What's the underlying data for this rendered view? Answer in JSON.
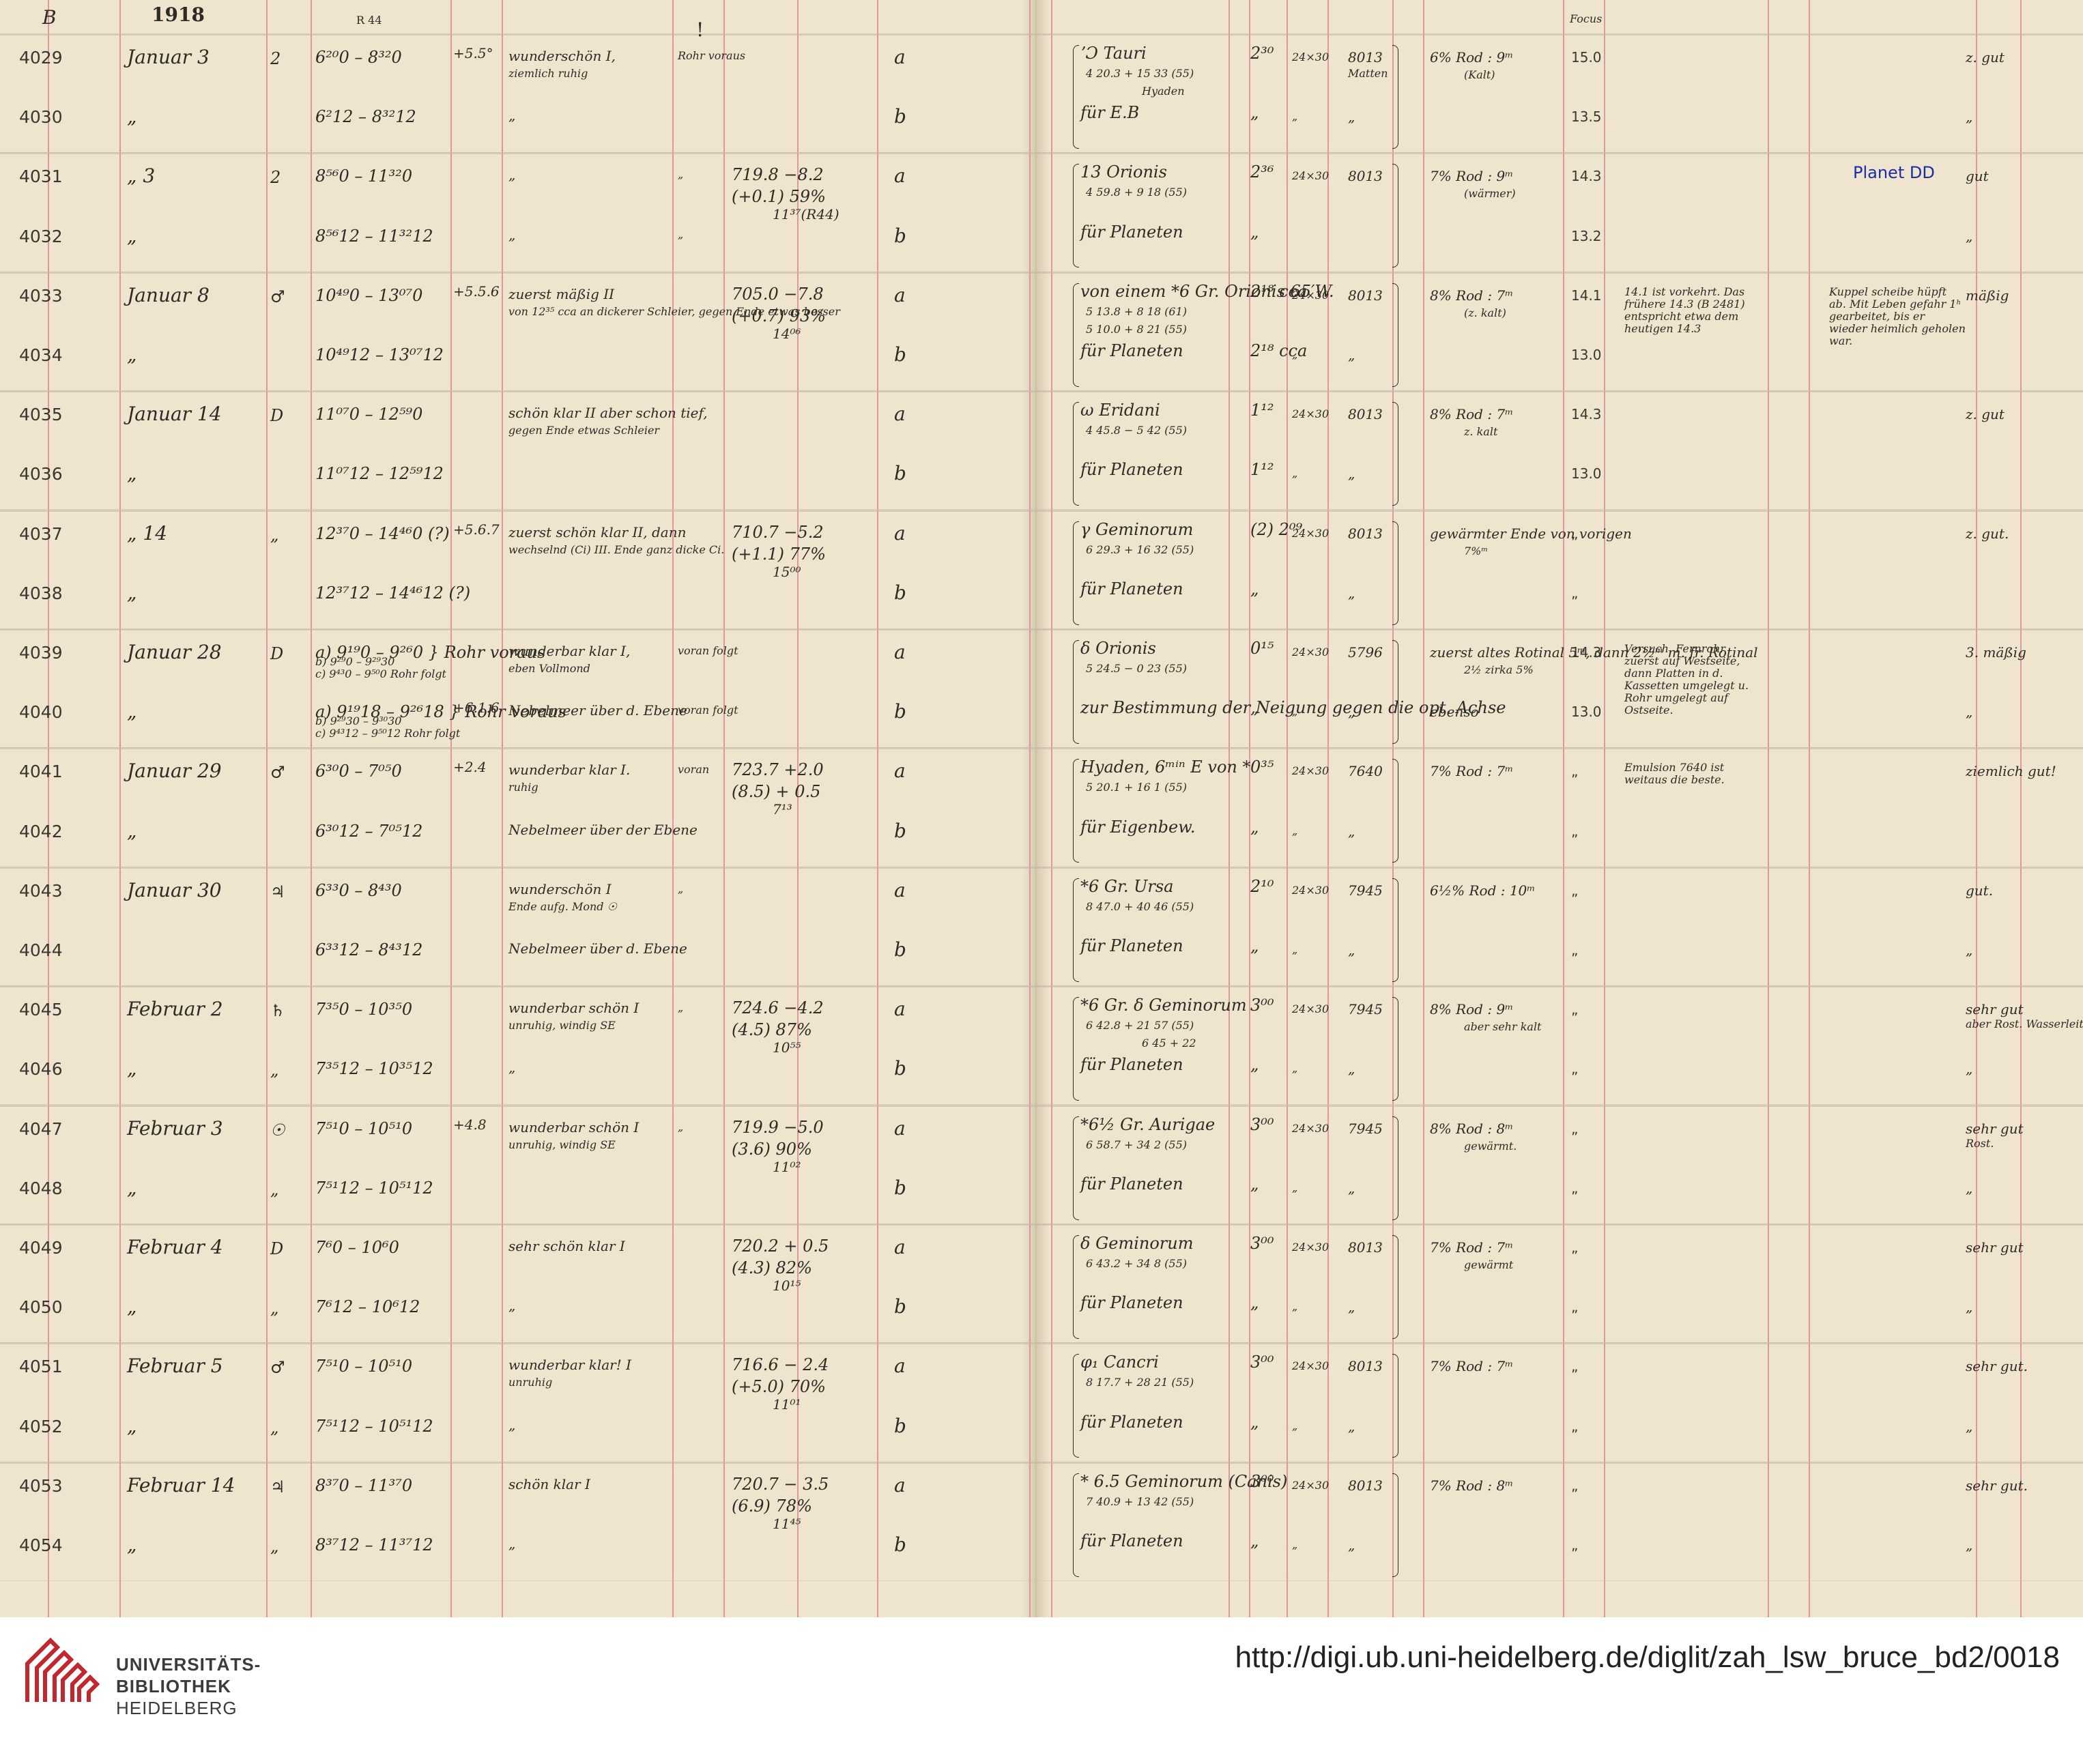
{
  "header": {
    "page_letter": "B",
    "year": "1918",
    "ref": "R 44",
    "exclaim": "!",
    "focus_label": "Focus"
  },
  "rows": [
    {
      "no": "4029",
      "date": "Januar 3",
      "wd": "2",
      "time": "6²⁰0 – 8³²0",
      "temp": "+5.5°",
      "weather": "wunderschön I,",
      "weather2": "ziemlich ruhig",
      "telescope": "Rohr voraus",
      "barometer": "",
      "letter": "a",
      "object": "ʼƆ Tauri",
      "coord": "4 20.3 + 15 33 (55)",
      "note": "Hyaden",
      "exposure": "2³⁰",
      "plate": "24×30",
      "emulsion": "8013",
      "emul2": "Matten",
      "filter": "6% Rod : 9ᵐ",
      "filter2": "(Kalt)",
      "focus": "15.0",
      "remark": "",
      "quality": "z. gut"
    },
    {
      "no": "4030",
      "date": "„",
      "wd": "",
      "time": "6²12 – 8³²12",
      "temp": "",
      "weather": "„",
      "weather2": "",
      "telescope": "",
      "barometer": "",
      "letter": "b",
      "object": "für E.B",
      "coord": "",
      "note": "",
      "exposure": "„",
      "plate": "„",
      "emulsion": "„",
      "emul2": "",
      "filter": "",
      "filter2": "",
      "focus": "13.5",
      "remark": "",
      "quality": "„"
    },
    {
      "no": "4031",
      "date": "„ 3",
      "wd": "2",
      "time": "8⁵⁶0 – 11³²0",
      "temp": "",
      "weather": "„",
      "weather2": "",
      "telescope": "„",
      "barometer": "719.8 −8.2",
      "barometer2": "(+0.1) 59%",
      "barometer3": "11³⁷(R44)",
      "letter": "a",
      "object": "13 Orionis",
      "coord": "4 59.8 + 9 18 (55)",
      "note": "",
      "exposure": "2³⁶",
      "plate": "24×30",
      "emulsion": "8013",
      "emul2": "",
      "filter": "7% Rod : 9ᵐ",
      "filter2": "(wärmer)",
      "focus": "14.3",
      "remark": "Planet DD",
      "quality": "gut"
    },
    {
      "no": "4032",
      "date": "„",
      "wd": "",
      "time": "8⁵⁶12 – 11³²12",
      "temp": "",
      "weather": "„",
      "weather2": "",
      "telescope": "„",
      "barometer": "",
      "letter": "b",
      "object": "für Planeten",
      "coord": "",
      "note": "",
      "exposure": "„",
      "plate": "",
      "emulsion": "",
      "emul2": "",
      "filter": "",
      "filter2": "",
      "focus": "13.2",
      "remark": "",
      "quality": "„"
    },
    {
      "no": "4033",
      "date": "Januar 8",
      "wd": "♂",
      "time": "10⁴⁹0 – 13⁰⁷0",
      "temp": "+5.5.6",
      "weather": "zuerst mäßig II",
      "weather2": "von 12³⁵ cca an dickerer Schleier, gegen Ende etwas besser",
      "telescope": "",
      "barometer": "705.0 −7.8",
      "barometer2": "(+0.7) 93%",
      "barometer3": "14⁰⁶",
      "letter": "a",
      "object": "von einem *6 Gr. Orionis 65′W.",
      "coord": "5 13.8 + 8 18 (61)",
      "coord2": "5 10.0 + 8 21 (55)",
      "note": "",
      "exposure": "2¹⁸ cca",
      "plate": "24×30",
      "emulsion": "8013",
      "emul2": "",
      "filter": "8% Rod : 7ᵐ",
      "filter2": "(z. kalt)",
      "focus": "14.1",
      "remark": "14.1 ist vorkehrt. Das frühere 14.3 (B 2481) entspricht etwa dem heutigen 14.3",
      "remark2": "Kuppel scheibe hüpft ab. Mit Leben gefahr 1ʰ gearbeitet, bis er wieder heimlich geholen war.",
      "quality": "mäßig"
    },
    {
      "no": "4034",
      "date": "„",
      "wd": "",
      "time": "10⁴⁹12 – 13⁰⁷12",
      "temp": "",
      "weather": "",
      "weather2": "",
      "telescope": "",
      "barometer": "",
      "letter": "b",
      "object": "für Planeten",
      "coord": "",
      "note": "",
      "exposure": "2¹⁸ cca",
      "plate": "„",
      "emulsion": "„",
      "emul2": "",
      "filter": "",
      "filter2": "",
      "focus": "13.0",
      "remark": "",
      "quality": ""
    },
    {
      "no": "4035",
      "date": "Januar 14",
      "wd": "D",
      "time": "11⁰⁷0 – 12⁵⁹0",
      "temp": "",
      "weather": "schön klar II aber schon tief,",
      "weather2": "gegen Ende etwas Schleier",
      "telescope": "",
      "barometer": "",
      "letter": "a",
      "object": "ω Eridani",
      "coord": "4 45.8 − 5 42 (55)",
      "note": "",
      "exposure": "1¹²",
      "plate": "24×30",
      "emulsion": "8013",
      "emul2": "",
      "filter": "8% Rod : 7ᵐ",
      "filter2": "z. kalt",
      "focus": "14.3",
      "remark": "",
      "quality": "z. gut"
    },
    {
      "no": "4036",
      "date": "„",
      "wd": "",
      "time": "11⁰⁷12 – 12⁵⁹12",
      "temp": "",
      "weather": "",
      "weather2": "",
      "telescope": "",
      "barometer": "",
      "letter": "b",
      "object": "für Planeten",
      "coord": "",
      "note": "",
      "exposure": "1¹²",
      "plate": "„",
      "emulsion": "„",
      "emul2": "",
      "filter": "",
      "filter2": "",
      "focus": "13.0",
      "remark": "",
      "quality": ""
    },
    {
      "no": "4037",
      "date": "„ 14",
      "wd": "„",
      "time": "12³⁷0 – 14⁴⁶0 (?)",
      "temp": "+5.6.7",
      "weather": "zuerst schön klar II, dann",
      "weather2": "wechselnd (Ci) III. Ende ganz dicke Ci.",
      "telescope": "",
      "barometer": "710.7 −5.2",
      "barometer2": "(+1.1) 77%",
      "barometer3": "15⁰⁰",
      "letter": "a",
      "object": "γ Geminorum",
      "coord": "6 29.3 + 16 32 (55)",
      "note": "",
      "exposure": "(2) 2⁰⁹",
      "plate": "24×30",
      "emulsion": "8013",
      "emul2": "",
      "filter": "gewärmter Ende von vorigen",
      "filter2": "7%ᵐ",
      "focus": "„",
      "remark": "",
      "quality": "z. gut."
    },
    {
      "no": "4038",
      "date": "„",
      "wd": "",
      "time": "12³⁷12 – 14⁴⁶12 (?)",
      "temp": "",
      "weather": "",
      "weather2": "",
      "telescope": "",
      "barometer": "",
      "letter": "b",
      "object": "für Planeten",
      "coord": "",
      "note": "",
      "exposure": "„",
      "plate": "",
      "emulsion": "„",
      "emul2": "",
      "filter": "",
      "filter2": "",
      "focus": "„",
      "remark": "",
      "quality": ""
    },
    {
      "no": "4039",
      "date": "Januar 28",
      "wd": "D",
      "time": "a) 9¹⁹0 – 9²⁶0 } Rohr voraus",
      "time2": "b) 9²⁹0 – 9²⁹30",
      "time3": "c) 9⁴³0 – 9⁵⁰0 Rohr folgt",
      "temp": "",
      "weather": "wunderbar klar I,",
      "weather2": "eben Vollmond",
      "telescope": "voran folgt",
      "barometer": "",
      "letter": "a",
      "object": "δ Orionis",
      "coord": "5 24.5 − 0 23 (55)",
      "note": "",
      "exposure": "0¹⁵",
      "plate": "24×30",
      "emulsion": "5796",
      "emul2": "",
      "filter": "zuerst altes Rotinal 5ᵐ, dann 2½ᵐ m. fr. Rotinal",
      "filter2": "2½ zirka 5%",
      "focus": "14.3",
      "remark": "Versuch. Fernrohr zuerst auf Westseite, dann Platten in d. Kassetten umgelegt u. Rohr umgelegt auf Ostseite.",
      "quality": "3. mäßig"
    },
    {
      "no": "4040",
      "date": "„",
      "wd": "",
      "time": "a) 9¹⁹18 – 9²⁶18 } Rohr voraus",
      "time2": "b) 9²⁹30 – 9³⁰30",
      "time3": "c) 9⁴³12 – 9⁵⁰12 Rohr folgt",
      "temp": "+6.1.6",
      "weather": "Nebelmeer über d. Ebene",
      "weather2": "",
      "telescope": "voran folgt",
      "barometer": "",
      "letter": "b",
      "object": "zur Bestimmung der Neigung gegen die opt. Achse",
      "coord": "",
      "note": "",
      "exposure": "„",
      "plate": "„",
      "emulsion": "„",
      "emul2": "",
      "filter": "ebenso",
      "filter2": "",
      "focus": "13.0",
      "remark": "",
      "quality": "„"
    },
    {
      "no": "4041",
      "date": "Januar 29",
      "wd": "♂",
      "time": "6³⁰0 – 7⁰⁵0",
      "temp": "+2.4",
      "weather": "wunderbar klar I.",
      "weather2": "ruhig",
      "telescope": "voran",
      "barometer": "723.7 +2.0",
      "barometer2": "(8.5) + 0.5",
      "barometer3": "7¹³",
      "letter": "a",
      "object": "Hyaden, 6ᵐⁱⁿ E von *",
      "coord": "5 20.1 + 16 1 (55)",
      "note": "",
      "exposure": "0³⁵",
      "plate": "24×30",
      "emulsion": "7640",
      "emul2": "",
      "filter": "7% Rod : 7ᵐ",
      "filter2": "",
      "focus": "„",
      "remark": "Emulsion 7640 ist weitaus die beste.",
      "quality": "ziemlich gut!"
    },
    {
      "no": "4042",
      "date": "„",
      "wd": "",
      "time": "6³⁰12 – 7⁰⁵12",
      "temp": "",
      "weather": "Nebelmeer über der Ebene",
      "weather2": "",
      "telescope": "",
      "barometer": "",
      "letter": "b",
      "object": "für Eigenbew.",
      "coord": "",
      "note": "",
      "exposure": "„",
      "plate": "„",
      "emulsion": "„",
      "emul2": "",
      "filter": "",
      "filter2": "",
      "focus": "„",
      "remark": "",
      "quality": ""
    },
    {
      "no": "4043",
      "date": "Januar 30",
      "wd": "♃",
      "time": "6³³0 – 8⁴³0",
      "temp": "",
      "weather": "wunderschön I",
      "weather2": "Ende aufg. Mond ☉",
      "telescope": "„",
      "barometer": "",
      "letter": "a",
      "object": "*6 Gr. Ursa",
      "coord": "8 47.0 + 40 46 (55)",
      "note": "",
      "exposure": "2¹⁰",
      "plate": "24×30",
      "emulsion": "7945",
      "emul2": "",
      "filter": "6½% Rod : 10ᵐ",
      "filter2": "",
      "focus": "„",
      "remark": "",
      "quality": "gut."
    },
    {
      "no": "4044",
      "date": "",
      "wd": "",
      "time": "6³³12 – 8⁴³12",
      "temp": "",
      "weather": "Nebelmeer über d. Ebene",
      "weather2": "",
      "telescope": "",
      "barometer": "",
      "letter": "b",
      "object": "für Planeten",
      "coord": "",
      "note": "",
      "exposure": "„",
      "plate": "„",
      "emulsion": "„",
      "emul2": "",
      "filter": "",
      "filter2": "",
      "focus": "„",
      "remark": "",
      "quality": "„"
    },
    {
      "no": "4045",
      "date": "Februar 2",
      "wd": "♄",
      "time": "7³⁵0 – 10³⁵0",
      "temp": "",
      "weather": "wunderbar schön I",
      "weather2": "unruhig, windig SE",
      "telescope": "„",
      "barometer": "724.6 −4.2",
      "barometer2": "(4.5) 87%",
      "barometer3": "10⁵⁵",
      "letter": "a",
      "object": "*6 Gr. δ Geminorum",
      "coord": "6 42.8 + 21 57 (55)",
      "note": "6 45 + 22",
      "exposure": "3⁰⁰",
      "plate": "24×30",
      "emulsion": "7945",
      "emul2": "",
      "filter": "8% Rod : 9ᵐ",
      "filter2": "aber sehr kalt",
      "focus": "„",
      "remark": "",
      "quality": "sehr gut",
      "quality2": "aber Rost. Wasserleitung!"
    },
    {
      "no": "4046",
      "date": "„",
      "wd": "„",
      "time": "7³⁵12 – 10³⁵12",
      "temp": "",
      "weather": "„",
      "weather2": "",
      "telescope": "",
      "barometer": "",
      "letter": "b",
      "object": "für Planeten",
      "coord": "",
      "note": "",
      "exposure": "„",
      "plate": "„",
      "emulsion": "„",
      "emul2": "",
      "filter": "",
      "filter2": "",
      "focus": "„",
      "remark": "",
      "quality": "„"
    },
    {
      "no": "4047",
      "date": "Februar 3",
      "wd": "☉",
      "time": "7⁵¹0 – 10⁵¹0",
      "temp": "+4.8",
      "weather": "wunderbar schön I",
      "weather2": "unruhig, windig SE",
      "telescope": "„",
      "barometer": "719.9 −5.0",
      "barometer2": "(3.6) 90%",
      "barometer3": "11⁰²",
      "letter": "a",
      "object": "*6½ Gr. Aurigae",
      "coord": "6 58.7 + 34 2 (55)",
      "note": "",
      "exposure": "3⁰⁰",
      "plate": "24×30",
      "emulsion": "7945",
      "emul2": "",
      "filter": "8% Rod : 8ᵐ",
      "filter2": "gewärmt.",
      "focus": "„",
      "remark": "",
      "quality": "sehr gut",
      "quality2": "Rost."
    },
    {
      "no": "4048",
      "date": "„",
      "wd": "„",
      "time": "7⁵¹12 – 10⁵¹12",
      "temp": "",
      "weather": "",
      "weather2": "",
      "telescope": "",
      "barometer": "",
      "letter": "b",
      "object": "für Planeten",
      "coord": "",
      "note": "",
      "exposure": "„",
      "plate": "„",
      "emulsion": "„",
      "emul2": "",
      "filter": "",
      "filter2": "",
      "focus": "„",
      "remark": "",
      "quality": "„"
    },
    {
      "no": "4049",
      "date": "Februar 4",
      "wd": "D",
      "time": "7⁶0 – 10⁶0",
      "temp": "",
      "weather": "sehr schön klar I",
      "weather2": "",
      "telescope": "",
      "barometer": "720.2 + 0.5",
      "barometer2": "(4.3) 82%",
      "barometer3": "10¹⁵",
      "letter": "a",
      "object": "δ Geminorum",
      "coord": "6 43.2 + 34 8 (55)",
      "note": "",
      "exposure": "3⁰⁰",
      "plate": "24×30",
      "emulsion": "8013",
      "emul2": "",
      "filter": "7% Rod : 7ᵐ",
      "filter2": "gewärmt",
      "focus": "„",
      "remark": "",
      "quality": "sehr gut"
    },
    {
      "no": "4050",
      "date": "„",
      "wd": "„",
      "time": "7⁶12 – 10⁶12",
      "temp": "",
      "weather": "„",
      "weather2": "",
      "telescope": "",
      "barometer": "",
      "letter": "b",
      "object": "für Planeten",
      "coord": "",
      "note": "",
      "exposure": "„",
      "plate": "„",
      "emulsion": "„",
      "emul2": "",
      "filter": "",
      "filter2": "",
      "focus": "„",
      "remark": "",
      "quality": "„"
    },
    {
      "no": "4051",
      "date": "Februar 5",
      "wd": "♂",
      "time": "7⁵¹0 – 10⁵¹0",
      "temp": "",
      "weather": "wunderbar klar! I",
      "weather2": "unruhig",
      "telescope": "",
      "barometer": "716.6 − 2.4",
      "barometer2": "(+5.0) 70%",
      "barometer3": "11⁰¹",
      "letter": "a",
      "object": "φ₁ Cancri",
      "coord": "8 17.7 + 28 21 (55)",
      "note": "",
      "exposure": "3⁰⁰",
      "plate": "24×30",
      "emulsion": "8013",
      "emul2": "",
      "filter": "7% Rod : 7ᵐ",
      "filter2": "",
      "focus": "„",
      "remark": "",
      "quality": "sehr gut."
    },
    {
      "no": "4052",
      "date": "„",
      "wd": "„",
      "time": "7⁵¹12 – 10⁵¹12",
      "temp": "",
      "weather": "„",
      "weather2": "",
      "telescope": "",
      "barometer": "",
      "letter": "b",
      "object": "für Planeten",
      "coord": "",
      "note": "",
      "exposure": "„",
      "plate": "„",
      "emulsion": "„",
      "emul2": "",
      "filter": "",
      "filter2": "",
      "focus": "„",
      "remark": "",
      "quality": "„"
    },
    {
      "no": "4053",
      "date": "Februar 14",
      "wd": "♃",
      "time": "8³⁷0 – 11³⁷0",
      "temp": "",
      "weather": "schön klar I",
      "weather2": "",
      "telescope": "",
      "barometer": "720.7 − 3.5",
      "barometer2": "(6.9) 78%",
      "barometer3": "11⁴⁵",
      "letter": "a",
      "object": "* 6.5 Geminorum (Canis)",
      "coord": "7 40.9 + 13 42 (55)",
      "note": "",
      "exposure": "3⁰⁰",
      "plate": "24×30",
      "emulsion": "8013",
      "emul2": "",
      "filter": "7% Rod : 8ᵐ",
      "filter2": "",
      "focus": "„",
      "remark": "",
      "quality": "sehr gut."
    },
    {
      "no": "4054",
      "date": "„",
      "wd": "„",
      "time": "8³⁷12 – 11³⁷12",
      "temp": "",
      "weather": "„",
      "weather2": "",
      "telescope": "",
      "barometer": "",
      "letter": "b",
      "object": "für Planeten",
      "coord": "",
      "note": "",
      "exposure": "„",
      "plate": "„",
      "emulsion": "„",
      "emul2": "",
      "filter": "",
      "filter2": "",
      "focus": "„",
      "remark": "",
      "quality": "„"
    }
  ],
  "footer": {
    "logo_line1": "UNIVERSITÄTS-",
    "logo_line2": "BIBLIOTHEK",
    "logo_line3": "HEIDELBERG",
    "url": "http://digi.ub.uni-heidelberg.de/diglit/zah_lsw_bruce_bd2/0018"
  },
  "colors": {
    "paper": "#efe5cf",
    "rule_red": "#d98b96",
    "ink": "#2e2a24",
    "blue_ink": "#1b2ca8",
    "logo_red": "#c0282d"
  }
}
